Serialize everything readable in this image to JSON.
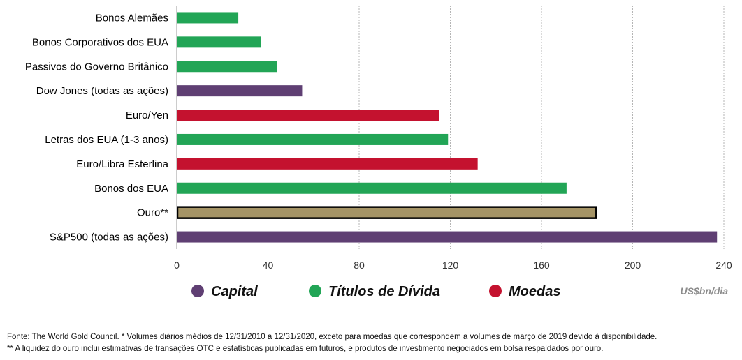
{
  "chart_data": {
    "type": "bar",
    "orientation": "horizontal",
    "categories": [
      "Bonos Alemães",
      "Bonos Corporativos dos EUA",
      "Passivos do Governo Britânico",
      "Dow Jones (todas as ações)",
      "Euro/Yen",
      "Letras dos EUA (1-3 anos)",
      "Euro/Libra Esterlina",
      "Bonos dos EUA",
      "Ouro**",
      "S&P500 (todas as ações)"
    ],
    "values": [
      27,
      37,
      44,
      55,
      115,
      119,
      132,
      171,
      184,
      237
    ],
    "groups": [
      "debt",
      "debt",
      "debt",
      "capital",
      "currency",
      "debt",
      "currency",
      "debt",
      "gold",
      "capital"
    ],
    "xlim": [
      0,
      240
    ],
    "xticks": [
      0,
      40,
      80,
      120,
      160,
      200,
      240
    ],
    "grid": true,
    "unit_label": "US$bn/dia",
    "legend": [
      {
        "key": "capital",
        "label": "Capital",
        "color": "#5f3f73"
      },
      {
        "key": "debt",
        "label": "Títulos de Dívida",
        "color": "#22a556"
      },
      {
        "key": "currency",
        "label": "Moedas",
        "color": "#c4122f"
      }
    ],
    "colors": {
      "capital": "#5f3f73",
      "debt": "#22a556",
      "currency": "#c4122f",
      "gold": "#a59466",
      "gold_outline": "#000000"
    }
  },
  "footnotes": [
    "Fonte: The World Gold Council. * Volumes diários médios de 12/31/2010 a 12/31/2020, exceto para moedas que correspondem a volumes de março de 2019 devido à disponibilidade.",
    "** A liquidez do ouro inclui estimativas de transações OTC e estatísticas publicadas em futuros, e produtos de investimento negociados em bolsa respaldados por ouro."
  ]
}
